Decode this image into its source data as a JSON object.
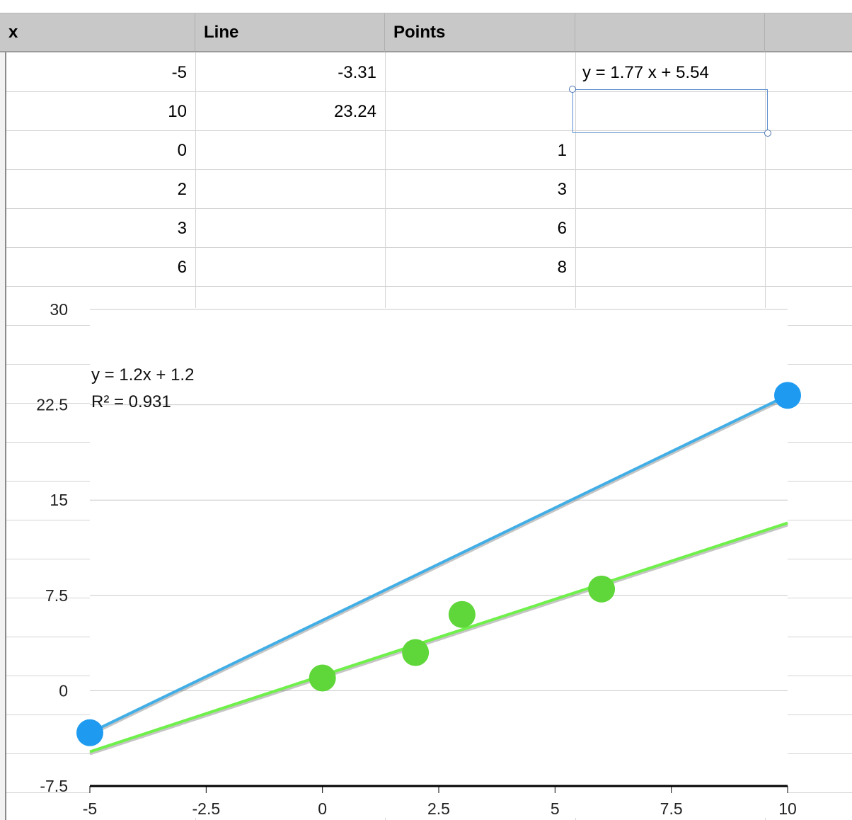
{
  "spreadsheet": {
    "headers": [
      "x",
      "Line",
      "Points",
      ""
    ],
    "rows": [
      {
        "x": "-5",
        "line": "-3.31",
        "points": "",
        "extra": "y = 1.77 x + 5.54"
      },
      {
        "x": "10",
        "line": "23.24",
        "points": "",
        "extra": ""
      },
      {
        "x": "0",
        "line": "",
        "points": "1",
        "extra": ""
      },
      {
        "x": "2",
        "line": "",
        "points": "3",
        "extra": ""
      },
      {
        "x": "3",
        "line": "",
        "points": "6",
        "extra": ""
      },
      {
        "x": "6",
        "line": "",
        "points": "8",
        "extra": ""
      }
    ]
  },
  "chart_data": {
    "type": "scatter",
    "title": "",
    "xlabel": "",
    "ylabel": "",
    "xlim": [
      -5,
      10
    ],
    "ylim": [
      -7.5,
      30
    ],
    "x_ticks": [
      "-5",
      "-2.5",
      "0",
      "2.5",
      "5",
      "7.5",
      "10"
    ],
    "y_ticks": [
      "30",
      "22.5",
      "15",
      "7.5",
      "0",
      "-7.5"
    ],
    "grid": true,
    "legend": "none",
    "series": [
      {
        "color": "#1e9bf0",
        "line_color": "#42aee6",
        "points": [
          [
            -5,
            -3.31
          ],
          [
            10,
            23.24
          ]
        ],
        "trendline": false
      },
      {
        "color": "#5fd63a",
        "line_color": "#6ff04a",
        "points": [
          [
            0,
            1
          ],
          [
            2,
            3
          ],
          [
            3,
            6
          ],
          [
            6,
            8
          ]
        ],
        "trendline": true
      }
    ],
    "trendline_label": {
      "equation": "y = 1.2x + 1.2",
      "r2": "R² = 0.931"
    }
  }
}
